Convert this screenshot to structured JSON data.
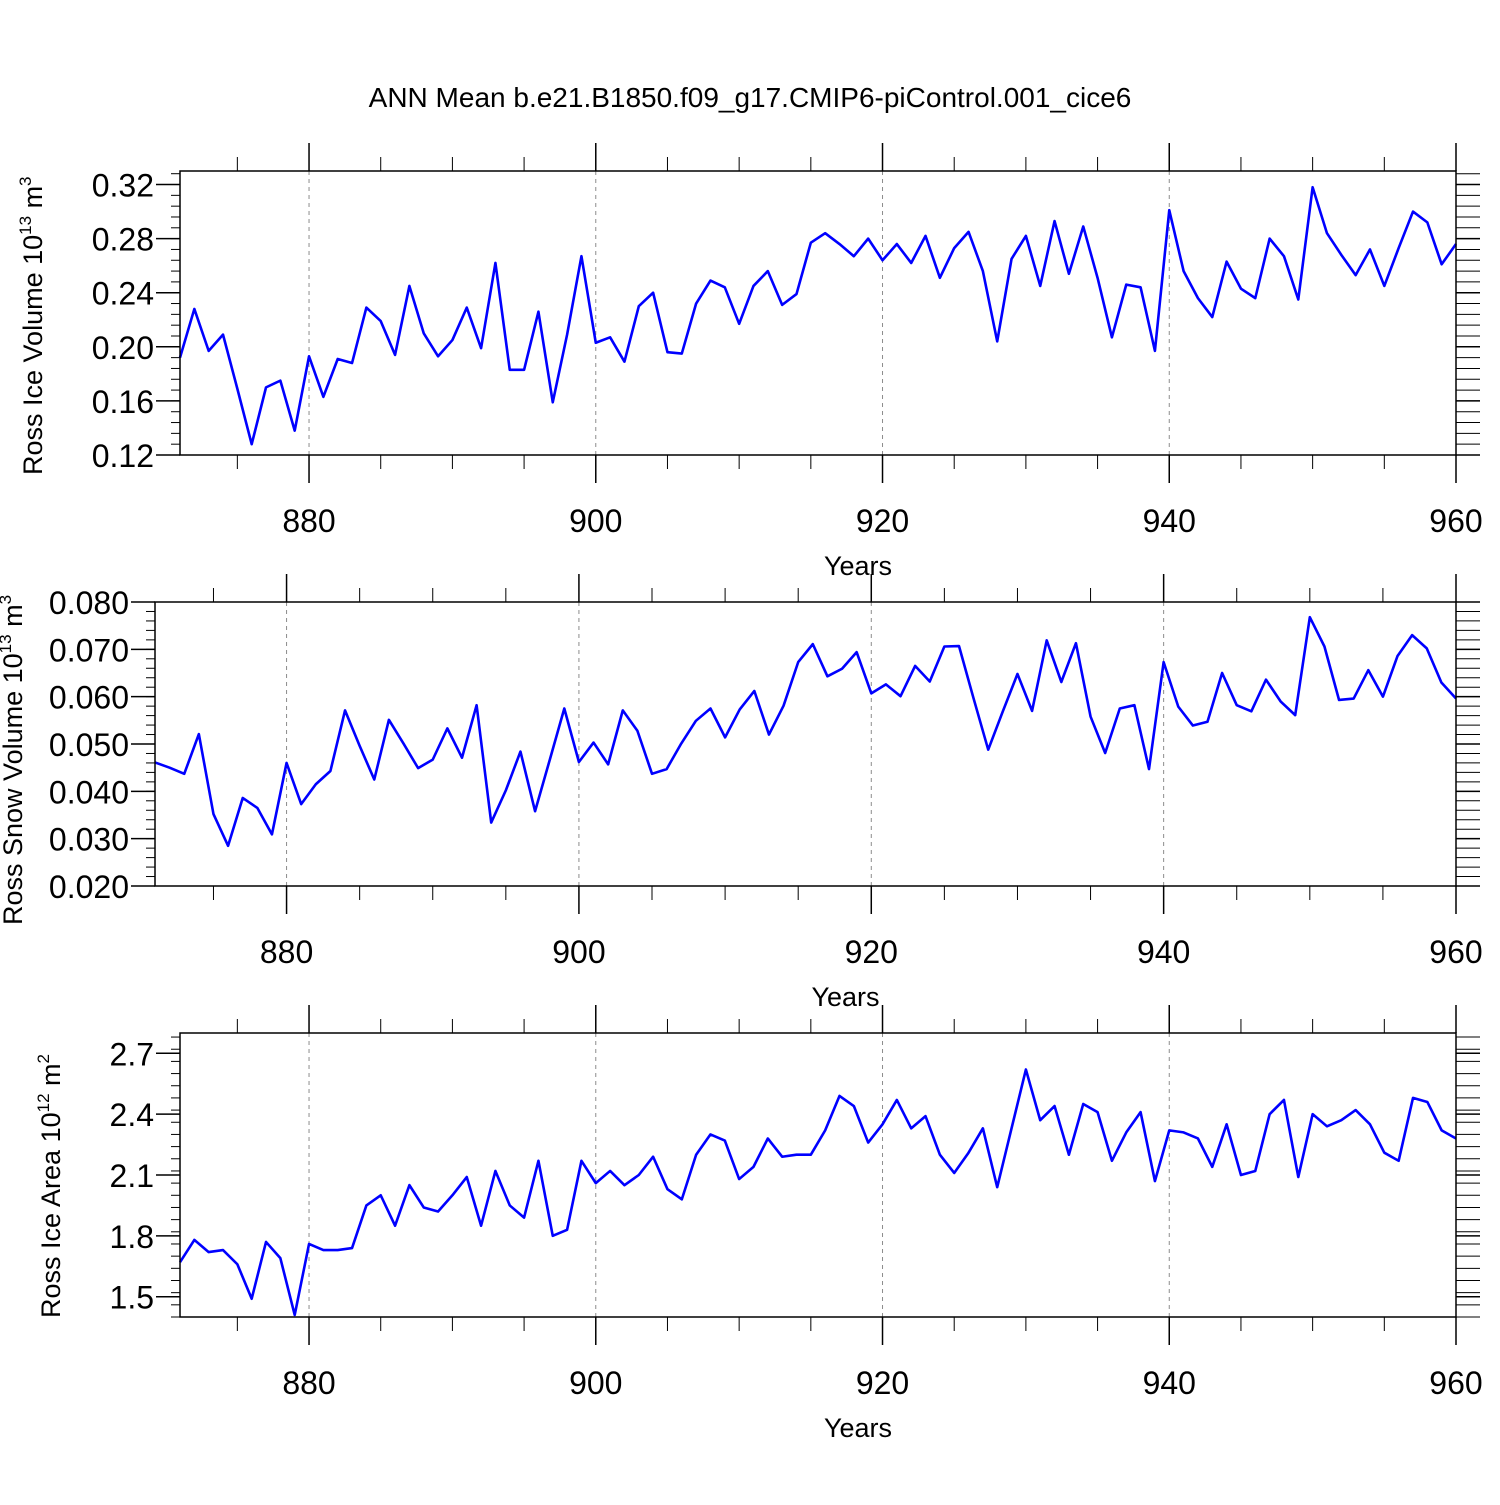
{
  "title": "ANN Mean b.e21.B1850.f09_g17.CMIP6-piControl.001_cice6",
  "colors": {
    "line": "#0000ff",
    "axis": "#000000",
    "grid": "#8c8c8c"
  },
  "chart_data": [
    {
      "type": "line",
      "ylabel": "Ross Ice Volume 10",
      "ylabel_sup": "13",
      "ylabel_unit": " m",
      "ylabel_unit_sup": "3",
      "xlabel": "Years",
      "xlim": [
        871,
        960
      ],
      "ylim": [
        0.12,
        0.33
      ],
      "xticks": [
        880,
        900,
        920,
        940,
        960
      ],
      "xtick_labels": [
        "880",
        "900",
        "920",
        "940",
        "960"
      ],
      "yticks": [
        0.12,
        0.16,
        0.2,
        0.24,
        0.28,
        0.32
      ],
      "ytick_labels": [
        "0.12",
        "0.16",
        "0.20",
        "0.24",
        "0.28",
        "0.32"
      ],
      "grid": "vertical dashed at major x ticks",
      "series": [
        {
          "values": [
            0.192,
            0.228,
            0.197,
            0.209,
            0.169,
            0.128,
            0.17,
            0.175,
            0.138,
            0.193,
            0.163,
            0.191,
            0.188,
            0.229,
            0.219,
            0.194,
            0.245,
            0.21,
            0.193,
            0.205,
            0.229,
            0.199,
            0.262,
            0.183,
            0.183,
            0.226,
            0.159,
            0.209,
            0.267,
            0.203,
            0.207,
            0.189,
            0.23,
            0.24,
            0.196,
            0.195,
            0.232,
            0.249,
            0.244,
            0.217,
            0.245,
            0.256,
            0.231,
            0.239,
            0.277,
            0.284,
            0.276,
            0.267,
            0.28,
            0.264,
            0.276,
            0.262,
            0.282,
            0.251,
            0.273,
            0.285,
            0.256,
            0.204,
            0.265,
            0.282,
            0.245,
            0.293,
            0.254,
            0.289,
            0.251,
            0.207,
            0.246,
            0.244,
            0.197,
            0.301,
            0.256,
            0.236,
            0.222,
            0.263,
            0.243,
            0.236,
            0.28,
            0.267,
            0.235,
            0.318,
            0.284,
            0.268,
            0.253,
            0.272,
            0.245,
            0.273,
            0.3,
            0.292,
            0.261,
            0.276
          ]
        }
      ]
    },
    {
      "type": "line",
      "ylabel": "Ross Snow Volume 10",
      "ylabel_sup": "13",
      "ylabel_unit": " m",
      "ylabel_unit_sup": "3",
      "xlabel": "Years",
      "xlim": [
        871,
        960
      ],
      "ylim": [
        0.02,
        0.08
      ],
      "xticks": [
        880,
        900,
        920,
        940,
        960
      ],
      "xtick_labels": [
        "880",
        "900",
        "920",
        "940",
        "960"
      ],
      "yticks": [
        0.02,
        0.03,
        0.04,
        0.05,
        0.06,
        0.07,
        0.08
      ],
      "ytick_labels": [
        "0.020",
        "0.030",
        "0.040",
        "0.050",
        "0.060",
        "0.070",
        "0.080"
      ],
      "grid": "vertical dashed at major x ticks",
      "series": [
        {
          "values": [
            0.0461,
            0.045,
            0.0437,
            0.0521,
            0.0352,
            0.0285,
            0.0386,
            0.0365,
            0.0309,
            0.046,
            0.0373,
            0.0415,
            0.0443,
            0.0571,
            0.0496,
            0.0425,
            0.0551,
            0.0501,
            0.0449,
            0.0467,
            0.0533,
            0.0471,
            0.0582,
            0.0334,
            0.0402,
            0.0484,
            0.0358,
            0.0466,
            0.0575,
            0.0462,
            0.0503,
            0.0457,
            0.0571,
            0.0528,
            0.0437,
            0.0447,
            0.0501,
            0.0549,
            0.0575,
            0.0514,
            0.0573,
            0.0612,
            0.052,
            0.0581,
            0.0673,
            0.0711,
            0.0643,
            0.0659,
            0.0694,
            0.0607,
            0.0626,
            0.0601,
            0.0665,
            0.0632,
            0.0706,
            0.0707,
            0.0596,
            0.0488,
            0.0569,
            0.0648,
            0.057,
            0.0719,
            0.0631,
            0.0713,
            0.0558,
            0.0481,
            0.0575,
            0.0582,
            0.0447,
            0.0673,
            0.0579,
            0.0539,
            0.0547,
            0.065,
            0.0582,
            0.0569,
            0.0636,
            0.059,
            0.0561,
            0.0768,
            0.0706,
            0.0593,
            0.0596,
            0.0656,
            0.06,
            0.0686,
            0.073,
            0.0702,
            0.063,
            0.0596
          ]
        }
      ]
    },
    {
      "type": "line",
      "ylabel": "Ross Ice Area 10",
      "ylabel_sup": "12",
      "ylabel_unit": " m",
      "ylabel_unit_sup": "2",
      "xlabel": "Years",
      "xlim": [
        871,
        960
      ],
      "ylim": [
        1.4,
        2.8
      ],
      "xticks": [
        880,
        900,
        920,
        940,
        960
      ],
      "xtick_labels": [
        "880",
        "900",
        "920",
        "940",
        "960"
      ],
      "yticks": [
        1.5,
        1.8,
        2.1,
        2.4,
        2.7
      ],
      "ytick_labels": [
        "1.5",
        "1.8",
        "2.1",
        "2.4",
        "2.7"
      ],
      "grid": "vertical dashed at major x ticks",
      "series": [
        {
          "values": [
            1.67,
            1.78,
            1.72,
            1.73,
            1.66,
            1.49,
            1.77,
            1.69,
            1.41,
            1.76,
            1.73,
            1.73,
            1.74,
            1.95,
            2.0,
            1.85,
            2.05,
            1.94,
            1.92,
            2.0,
            2.09,
            1.85,
            2.12,
            1.95,
            1.89,
            2.17,
            1.8,
            1.83,
            2.17,
            2.06,
            2.12,
            2.05,
            2.1,
            2.19,
            2.03,
            1.98,
            2.2,
            2.3,
            2.27,
            2.08,
            2.14,
            2.28,
            2.19,
            2.2,
            2.2,
            2.32,
            2.49,
            2.44,
            2.26,
            2.35,
            2.47,
            2.33,
            2.39,
            2.2,
            2.11,
            2.21,
            2.33,
            2.04,
            2.33,
            2.62,
            2.37,
            2.44,
            2.2,
            2.45,
            2.41,
            2.17,
            2.31,
            2.41,
            2.07,
            2.32,
            2.31,
            2.28,
            2.14,
            2.35,
            2.1,
            2.12,
            2.4,
            2.47,
            2.09,
            2.4,
            2.34,
            2.37,
            2.42,
            2.35,
            2.21,
            2.17,
            2.48,
            2.46,
            2.32,
            2.28
          ]
        }
      ]
    }
  ]
}
